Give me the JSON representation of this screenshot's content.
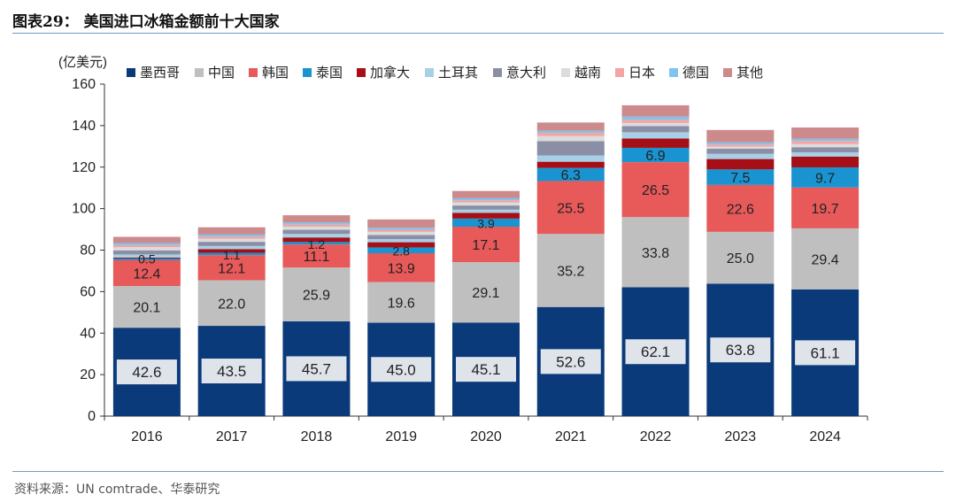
{
  "title": "图表29：  美国进口冰箱金额前十大国家",
  "source": "资料来源：UN comtrade、华泰研究",
  "chart_data": {
    "type": "bar",
    "stacked": true,
    "unit_label": "(亿美元)",
    "categories": [
      "2016",
      "2017",
      "2018",
      "2019",
      "2020",
      "2021",
      "2022",
      "2023",
      "2024"
    ],
    "ylim": [
      0,
      160
    ],
    "yticks": [
      0,
      20,
      40,
      60,
      80,
      100,
      120,
      140,
      160
    ],
    "legend_position": "top",
    "series": [
      {
        "name": "墨西哥",
        "color": "#0b3a7a",
        "values": [
          42.6,
          43.5,
          45.7,
          45.0,
          45.1,
          52.6,
          62.1,
          63.8,
          61.1
        ],
        "labels": [
          "42.6",
          "43.5",
          "45.7",
          "45.0",
          "45.1",
          "52.6",
          "62.1",
          "63.8",
          "61.1"
        ]
      },
      {
        "name": "中国",
        "color": "#bfbfbf",
        "values": [
          20.1,
          22.0,
          25.9,
          19.6,
          29.1,
          35.2,
          33.8,
          25.0,
          29.4
        ],
        "labels": [
          "20.1",
          "22.0",
          "25.9",
          "19.6",
          "29.1",
          "35.2",
          "33.8",
          "25.0",
          "29.4"
        ]
      },
      {
        "name": "韩国",
        "color": "#e8595a",
        "values": [
          12.4,
          12.1,
          11.1,
          13.9,
          17.1,
          25.5,
          26.5,
          22.6,
          19.7
        ],
        "labels": [
          "12.4",
          "12.1",
          "11.1",
          "13.9",
          "17.1",
          "25.5",
          "26.5",
          "22.6",
          "19.7"
        ]
      },
      {
        "name": "泰国",
        "color": "#1a93d1",
        "values": [
          0.8,
          1.1,
          1.2,
          2.8,
          3.9,
          6.3,
          6.9,
          7.5,
          9.7
        ],
        "labels": [
          "",
          "1.1",
          "1.2",
          "2.8",
          "3.9",
          "6.3",
          "6.9",
          "7.5",
          "9.7"
        ]
      },
      {
        "name": "加拿大",
        "color": "#a50f15",
        "values": [
          0.5,
          1.8,
          2.2,
          2.5,
          2.8,
          3.0,
          4.5,
          5.0,
          5.2
        ],
        "labels": [
          "0.5",
          "",
          "",
          "",
          "",
          "",
          "",
          "",
          ""
        ]
      },
      {
        "name": "土耳其",
        "color": "#a7cfe6",
        "values": [
          1.5,
          1.5,
          1.7,
          1.5,
          1.5,
          3.0,
          3.0,
          2.5,
          2.0
        ],
        "labels": [
          "",
          "",
          "",
          "",
          "",
          "",
          "",
          "",
          ""
        ]
      },
      {
        "name": "意大利",
        "color": "#8a8fa6",
        "values": [
          2.0,
          2.0,
          2.0,
          2.0,
          2.0,
          6.9,
          3.0,
          2.5,
          2.5
        ],
        "labels": [
          "",
          "",
          "",
          "",
          "",
          "",
          "",
          "",
          ""
        ]
      },
      {
        "name": "越南",
        "color": "#dcdcdc",
        "values": [
          1.5,
          1.5,
          1.5,
          1.5,
          1.5,
          2.5,
          1.5,
          1.0,
          1.5
        ],
        "labels": [
          "",
          "",
          "",
          "",
          "",
          "",
          "",
          "",
          ""
        ]
      },
      {
        "name": "日本",
        "color": "#f5a3a3",
        "values": [
          1.0,
          1.0,
          1.0,
          1.0,
          1.0,
          1.5,
          1.5,
          1.0,
          1.5
        ],
        "labels": [
          "",
          "",
          "",
          "",
          "",
          "",
          "",
          "",
          ""
        ]
      },
      {
        "name": "德国",
        "color": "#7ec4ec",
        "values": [
          1.0,
          1.0,
          1.0,
          1.0,
          1.0,
          1.0,
          1.5,
          1.0,
          1.0
        ],
        "labels": [
          "",
          "",
          "",
          "",
          "",
          "",
          "",
          "",
          ""
        ]
      },
      {
        "name": "其他",
        "color": "#cc8a8c",
        "values": [
          3.0,
          3.5,
          3.5,
          4.0,
          3.5,
          4.0,
          5.5,
          6.0,
          5.5
        ],
        "labels": [
          "",
          "",
          "",
          "",
          "",
          "",
          "",
          "",
          ""
        ]
      }
    ]
  }
}
